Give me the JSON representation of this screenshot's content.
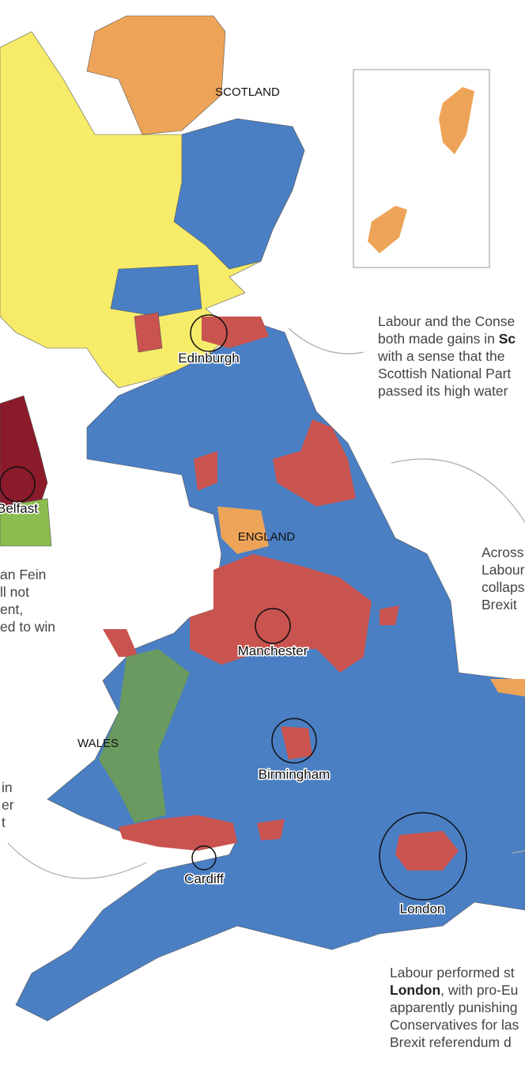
{
  "legend_colors": {
    "conservative": "#4a7fc4",
    "labour": "#c9534f",
    "snp": "#f7ec6a",
    "lib_dem": "#eda458",
    "plaid_cymru": "#6a9a5f",
    "dup": "#8b1a2b",
    "sinn_fein": "#8cbb4e",
    "other": "#9a9a9a"
  },
  "regions": {
    "scotland": "SCOTLAND",
    "england": "ENGLAND",
    "wales": "WALES"
  },
  "cities": {
    "edinburgh": "Edinburgh",
    "belfast": "Belfast",
    "manchester": "Manchester",
    "birmingham": "Birmingham",
    "cardiff": "Cardiff",
    "london": "London"
  },
  "annotations": {
    "scotland": {
      "lines": [
        "Labour and the Conse",
        "both made gains in ",
        "with a sense that the",
        "Scottish National Part",
        "passed its high water"
      ],
      "bold": "Sc"
    },
    "england": {
      "lines": [
        "Across",
        "Labour",
        "collaps",
        "Brexit"
      ]
    },
    "northern_ireland": {
      "lines": [
        "an Fein",
        "ll not",
        "ent,",
        "ed to win"
      ]
    },
    "wales": {
      "lines": [
        "in",
        "er",
        "t"
      ]
    },
    "london": {
      "lines": [
        "Labour performed st",
        ", with pro-Eu",
        "apparently punishing",
        "Conservatives for las",
        "Brexit referendum d"
      ],
      "bold": "London"
    }
  }
}
